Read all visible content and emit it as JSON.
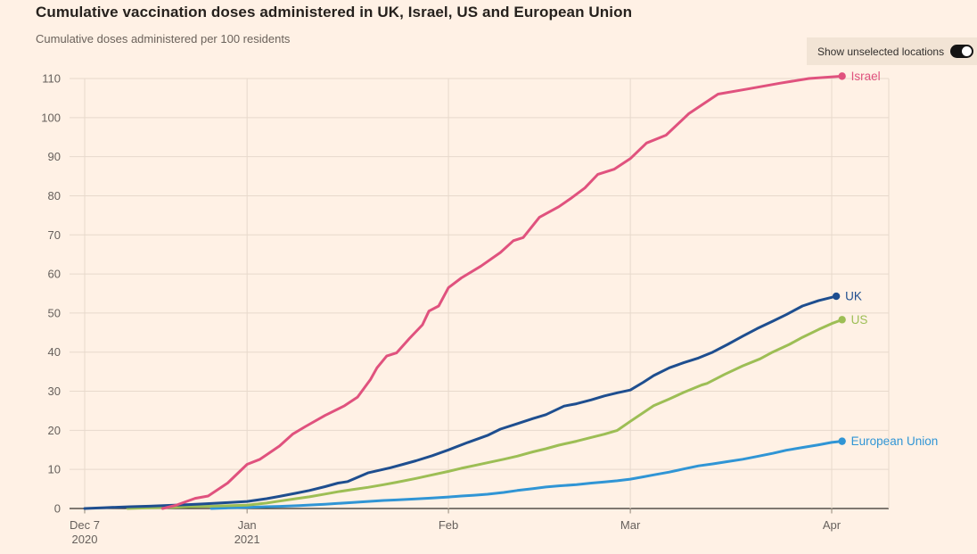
{
  "header": {
    "title": "Cumulative vaccination doses administered in UK, Israel, US and European Union",
    "subtitle": "Cumulative doses administered per 100 residents"
  },
  "toggle": {
    "label": "Show unselected locations",
    "state": "on"
  },
  "colors": {
    "background": "#FFF1E5",
    "panel": "#F2E4D5",
    "grid": "#E7D9CC",
    "axis_line": "#33302A",
    "axis_text": "#66605C",
    "x_tick_mark": "#8F8678",
    "title_text": "#26211D",
    "subtitle_text": "#6B625B"
  },
  "chart_data": {
    "type": "line",
    "title": "Cumulative vaccination doses administered in UK, Israel, US and European Union",
    "ylabel": "Cumulative doses administered per 100 residents",
    "xlabel": "",
    "x_unit": "days since 7 Dec 2020",
    "ylim": [
      0,
      110
    ],
    "xlim": [
      0,
      123.8
    ],
    "grid": true,
    "legend_position": "end-of-line labels",
    "y_ticks": [
      0,
      10,
      20,
      30,
      40,
      50,
      60,
      70,
      80,
      90,
      100,
      110
    ],
    "x_ticks": [
      {
        "day": 0,
        "label": "Dec 7",
        "label2": "2020"
      },
      {
        "day": 25,
        "label": "Jan",
        "label2": "2021"
      },
      {
        "day": 56,
        "label": "Feb",
        "label2": ""
      },
      {
        "day": 84,
        "label": "Mar",
        "label2": ""
      },
      {
        "day": 115,
        "label": "Apr",
        "label2": ""
      }
    ],
    "series": [
      {
        "name": "European Union",
        "color": "#3095D5",
        "points": [
          [
            19.5,
            0
          ],
          [
            22,
            0.15
          ],
          [
            25,
            0.3
          ],
          [
            28,
            0.45
          ],
          [
            30,
            0.55
          ],
          [
            33,
            0.75
          ],
          [
            34.6,
            0.9
          ],
          [
            37,
            1.1
          ],
          [
            39,
            1.3
          ],
          [
            41,
            1.5
          ],
          [
            43.6,
            1.8
          ],
          [
            46,
            2.05
          ],
          [
            48,
            2.2
          ],
          [
            51,
            2.45
          ],
          [
            53.5,
            2.7
          ],
          [
            56,
            2.95
          ],
          [
            58,
            3.2
          ],
          [
            60,
            3.4
          ],
          [
            62,
            3.65
          ],
          [
            64.5,
            4.1
          ],
          [
            66.6,
            4.6
          ],
          [
            69,
            5.1
          ],
          [
            71,
            5.5
          ],
          [
            73,
            5.8
          ],
          [
            75.7,
            6.1
          ],
          [
            78,
            6.5
          ],
          [
            80,
            6.8
          ],
          [
            82,
            7.1
          ],
          [
            84,
            7.5
          ],
          [
            86,
            8.1
          ],
          [
            87.6,
            8.6
          ],
          [
            90,
            9.3
          ],
          [
            92.2,
            10.1
          ],
          [
            94.5,
            10.9
          ],
          [
            96.7,
            11.4
          ],
          [
            99,
            12
          ],
          [
            101.3,
            12.6
          ],
          [
            103.5,
            13.3
          ],
          [
            105.9,
            14.1
          ],
          [
            108,
            14.9
          ],
          [
            110.5,
            15.6
          ],
          [
            113,
            16.3
          ],
          [
            115,
            16.9
          ],
          [
            116.6,
            17.2
          ]
        ]
      },
      {
        "name": "US",
        "color": "#9DBE55",
        "points": [
          [
            6.6,
            0
          ],
          [
            10,
            0.15
          ],
          [
            13,
            0.3
          ],
          [
            16,
            0.45
          ],
          [
            18.5,
            0.55
          ],
          [
            22,
            0.7
          ],
          [
            25,
            0.85
          ],
          [
            28,
            1.4
          ],
          [
            30,
            1.9
          ],
          [
            32.5,
            2.5
          ],
          [
            34.6,
            3.0
          ],
          [
            37,
            3.7
          ],
          [
            39,
            4.3
          ],
          [
            41,
            4.8
          ],
          [
            43.6,
            5.4
          ],
          [
            46,
            6.1
          ],
          [
            48,
            6.7
          ],
          [
            51,
            7.7
          ],
          [
            53.5,
            8.6
          ],
          [
            56,
            9.5
          ],
          [
            58,
            10.3
          ],
          [
            60,
            11
          ],
          [
            62,
            11.7
          ],
          [
            64.5,
            12.6
          ],
          [
            66.6,
            13.4
          ],
          [
            69,
            14.5
          ],
          [
            71,
            15.3
          ],
          [
            73,
            16.2
          ],
          [
            75.7,
            17.2
          ],
          [
            78,
            18.2
          ],
          [
            80,
            19
          ],
          [
            82,
            20
          ],
          [
            84,
            22.3
          ],
          [
            87.6,
            26.3
          ],
          [
            90,
            28
          ],
          [
            92.2,
            29.7
          ],
          [
            95,
            31.6
          ],
          [
            95.8,
            32
          ],
          [
            98.5,
            34.3
          ],
          [
            101.3,
            36.5
          ],
          [
            104,
            38.3
          ],
          [
            105.9,
            40
          ],
          [
            108.5,
            42
          ],
          [
            110.5,
            43.8
          ],
          [
            113,
            45.8
          ],
          [
            115,
            47.3
          ],
          [
            116.6,
            48.3
          ]
        ]
      },
      {
        "name": "UK",
        "color": "#1E4E8F",
        "points": [
          [
            0,
            0
          ],
          [
            3,
            0.2
          ],
          [
            7,
            0.45
          ],
          [
            10,
            0.6
          ],
          [
            13,
            0.8
          ],
          [
            16,
            1.0
          ],
          [
            18.5,
            1.2
          ],
          [
            22,
            1.5
          ],
          [
            25,
            1.8
          ],
          [
            28,
            2.5
          ],
          [
            30,
            3.1
          ],
          [
            32.5,
            3.9
          ],
          [
            34.6,
            4.6
          ],
          [
            37,
            5.6
          ],
          [
            39,
            6.5
          ],
          [
            40.5,
            6.9
          ],
          [
            43.6,
            9.1
          ],
          [
            47,
            10.4
          ],
          [
            49,
            11.3
          ],
          [
            51,
            12.2
          ],
          [
            53.5,
            13.5
          ],
          [
            56,
            15
          ],
          [
            59,
            16.9
          ],
          [
            62,
            18.7
          ],
          [
            64,
            20.3
          ],
          [
            66.6,
            21.7
          ],
          [
            69,
            23
          ],
          [
            71,
            24
          ],
          [
            73.8,
            26.2
          ],
          [
            75.7,
            26.8
          ],
          [
            78,
            27.8
          ],
          [
            80,
            28.8
          ],
          [
            82,
            29.6
          ],
          [
            84,
            30.3
          ],
          [
            86,
            32.3
          ],
          [
            87.6,
            34
          ],
          [
            90,
            36
          ],
          [
            92.2,
            37.3
          ],
          [
            94.5,
            38.5
          ],
          [
            96.7,
            40
          ],
          [
            99,
            42
          ],
          [
            101.3,
            44.1
          ],
          [
            103.5,
            46
          ],
          [
            105.9,
            47.9
          ],
          [
            108,
            49.6
          ],
          [
            110.5,
            51.8
          ],
          [
            113,
            53.2
          ],
          [
            115.7,
            54.3
          ]
        ]
      },
      {
        "name": "Israel",
        "color": "#E0527E",
        "points": [
          [
            12,
            0
          ],
          [
            14,
            0.8
          ],
          [
            17,
            2.6
          ],
          [
            19,
            3.2
          ],
          [
            22,
            6.5
          ],
          [
            25,
            11.3
          ],
          [
            27,
            12.6
          ],
          [
            30,
            16
          ],
          [
            32,
            19
          ],
          [
            34,
            21
          ],
          [
            37,
            23.8
          ],
          [
            40,
            26.3
          ],
          [
            42,
            28.5
          ],
          [
            44,
            33
          ],
          [
            45,
            36
          ],
          [
            46.5,
            39
          ],
          [
            48,
            39.8
          ],
          [
            50,
            43.5
          ],
          [
            52,
            47
          ],
          [
            53,
            50.5
          ],
          [
            54.5,
            51.8
          ],
          [
            56,
            56.5
          ],
          [
            58,
            59
          ],
          [
            61,
            62
          ],
          [
            64,
            65.5
          ],
          [
            66,
            68.5
          ],
          [
            67.5,
            69.3
          ],
          [
            70,
            74.5
          ],
          [
            73,
            77.2
          ],
          [
            75,
            79.5
          ],
          [
            77,
            82
          ],
          [
            79,
            85.5
          ],
          [
            81.5,
            86.8
          ],
          [
            84,
            89.5
          ],
          [
            86.5,
            93.5
          ],
          [
            89.5,
            95.5
          ],
          [
            93,
            101
          ],
          [
            97.5,
            106
          ],
          [
            102,
            107.3
          ],
          [
            107,
            108.8
          ],
          [
            111.5,
            110
          ],
          [
            116.6,
            110.6
          ]
        ]
      }
    ]
  }
}
